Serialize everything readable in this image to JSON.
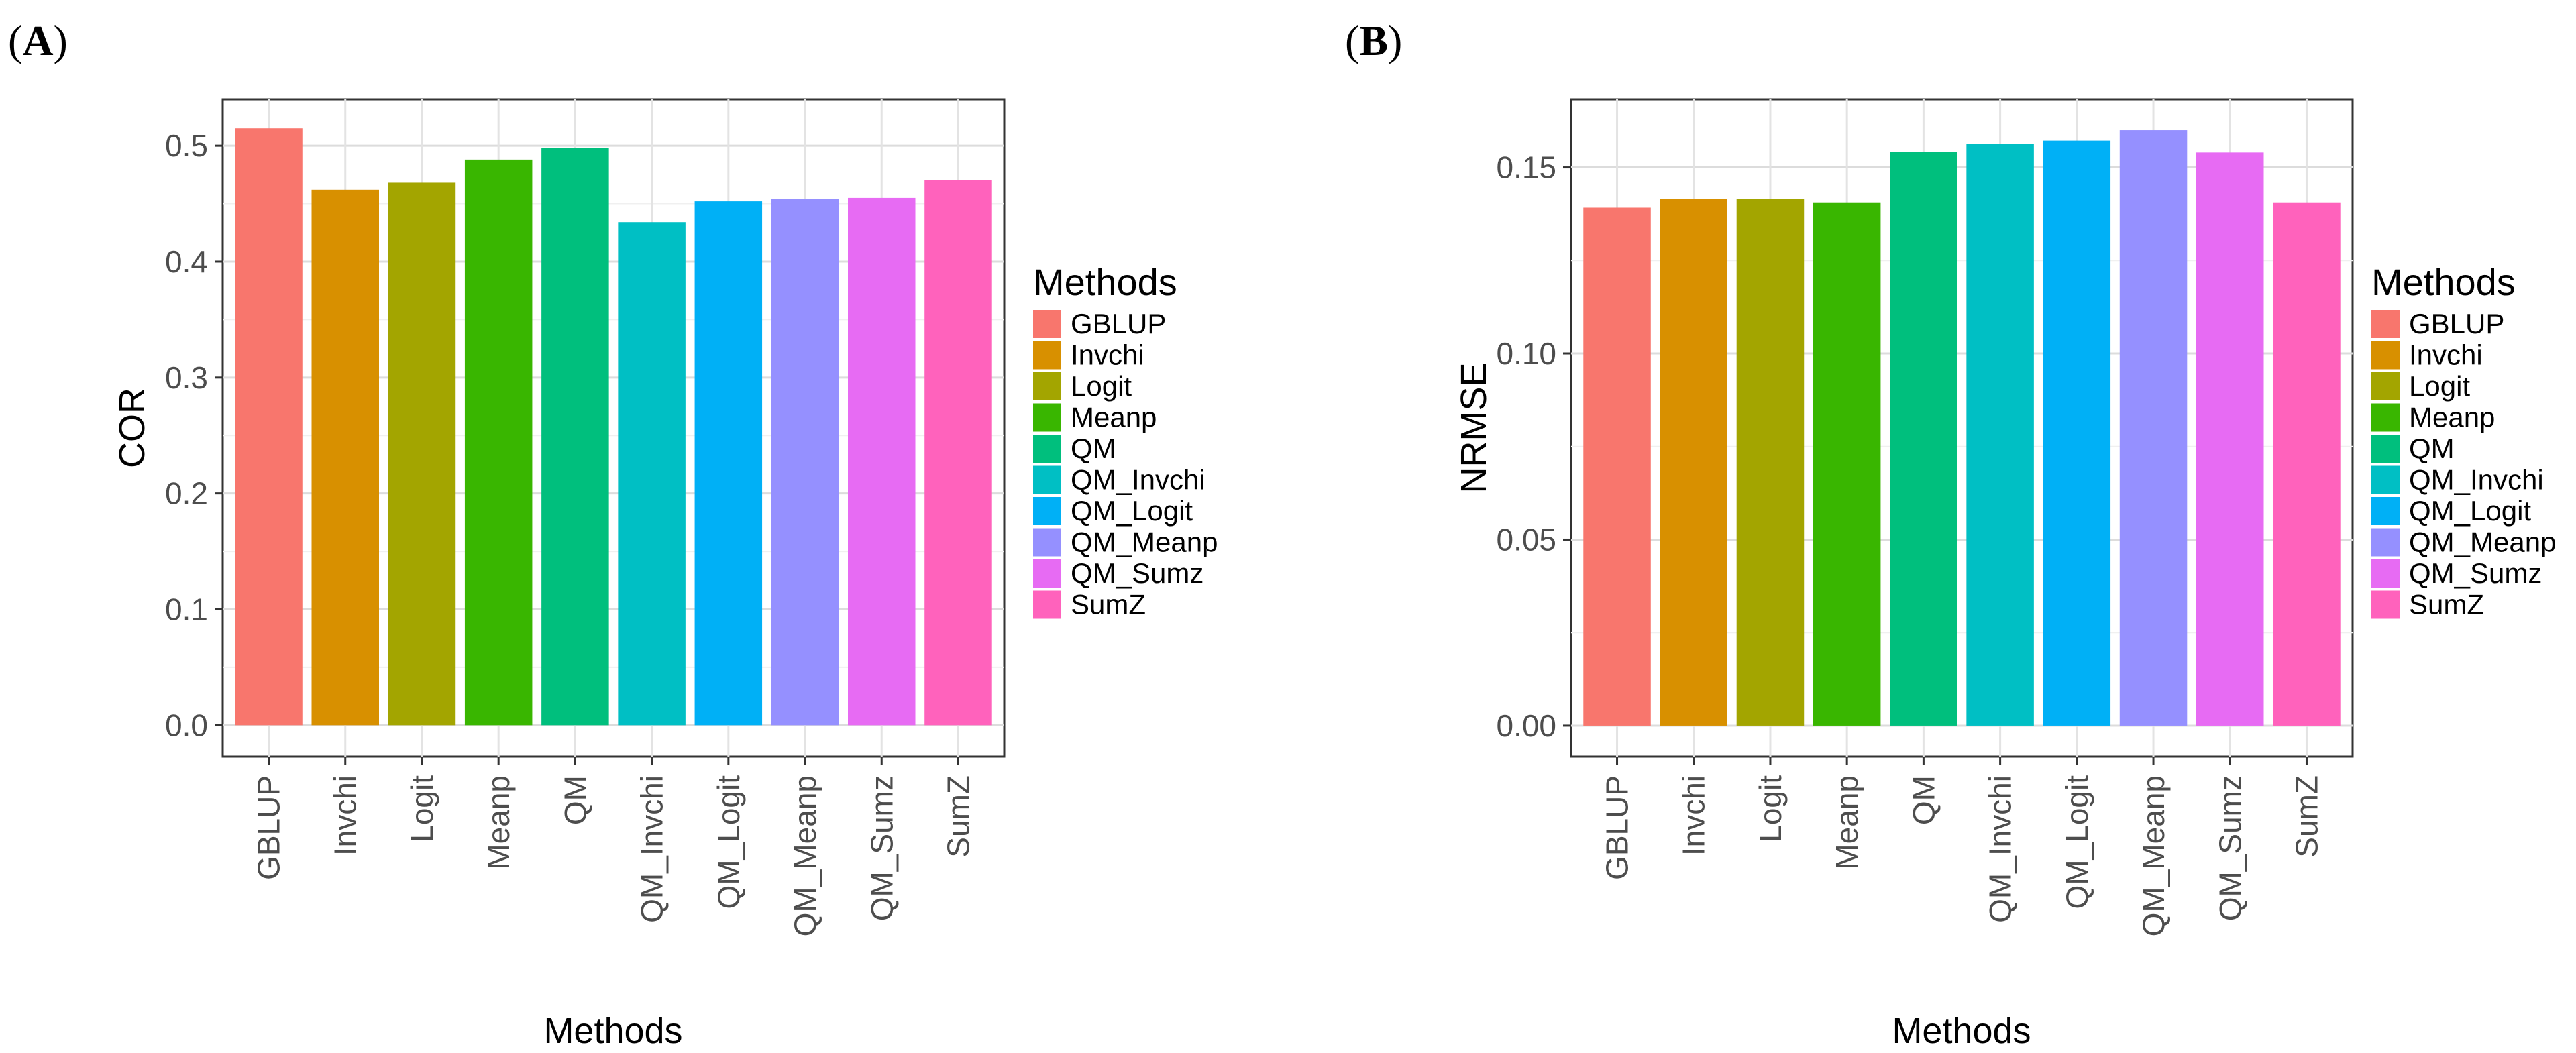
{
  "panels": [
    {
      "label_open": "(",
      "label_letter": "A",
      "label_close": ")"
    },
    {
      "label_open": "(",
      "label_letter": "B",
      "label_close": ")"
    }
  ],
  "chart_data": [
    {
      "type": "bar",
      "categories": [
        "GBLUP",
        "Invchi",
        "Logit",
        "Meanp",
        "QM",
        "QM_Invchi",
        "QM_Logit",
        "QM_Meanp",
        "QM_Sumz",
        "SumZ"
      ],
      "values": [
        0.515,
        0.462,
        0.468,
        0.488,
        0.498,
        0.434,
        0.452,
        0.454,
        0.455,
        0.47
      ],
      "colors": [
        "#F8766D",
        "#D89000",
        "#A3A500",
        "#39B600",
        "#00BF7D",
        "#00BFC4",
        "#00B0F6",
        "#9590FF",
        "#E76BF3",
        "#FF62BC"
      ],
      "xlabel": "Methods",
      "ylabel": "COR",
      "ylim": [
        -0.027,
        0.54
      ],
      "yticks": [
        0.0,
        0.1,
        0.2,
        0.3,
        0.4,
        0.5
      ],
      "ytick_labels": [
        "0.0",
        "0.1",
        "0.2",
        "0.3",
        "0.4",
        "0.5"
      ],
      "grid": true,
      "legend_title": "Methods",
      "legend_position": "right"
    },
    {
      "type": "bar",
      "categories": [
        "GBLUP",
        "Invchi",
        "Logit",
        "Meanp",
        "QM",
        "QM_Invchi",
        "QM_Logit",
        "QM_Meanp",
        "QM_Sumz",
        "SumZ"
      ],
      "values": [
        0.1392,
        0.1416,
        0.1415,
        0.1406,
        0.1542,
        0.1563,
        0.1572,
        0.16,
        0.154,
        0.1406
      ],
      "colors": [
        "#F8766D",
        "#D89000",
        "#A3A500",
        "#39B600",
        "#00BF7D",
        "#00BFC4",
        "#00B0F6",
        "#9590FF",
        "#E76BF3",
        "#FF62BC"
      ],
      "xlabel": "Methods",
      "ylabel": "NRMSE",
      "ylim": [
        -0.0083,
        0.1683
      ],
      "yticks": [
        0.0,
        0.05,
        0.1,
        0.15
      ],
      "ytick_labels": [
        "0.00",
        "0.05",
        "0.10",
        "0.15"
      ],
      "grid": true,
      "legend_title": "Methods",
      "legend_position": "right"
    }
  ]
}
